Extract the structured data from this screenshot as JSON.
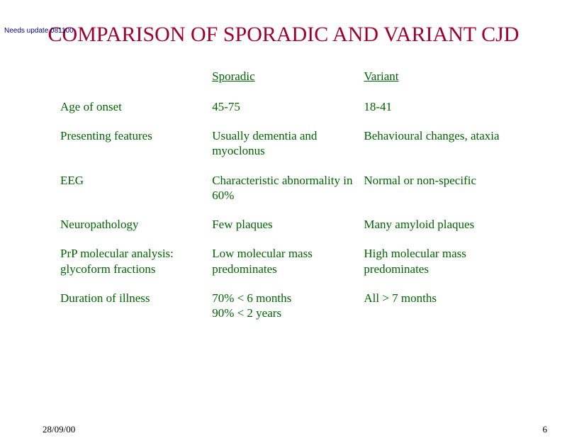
{
  "update_note": "Needs update 081100",
  "title": "COMPARISON OF SPORADIC AND VARIANT CJD",
  "table": {
    "type": "table",
    "columns": [
      "",
      "Sporadic",
      "Variant"
    ],
    "rows": [
      [
        "Age of onset",
        "45-75",
        "18-41"
      ],
      [
        "Presenting features",
        "Usually dementia and myoclonus",
        "Behavioural changes, ataxia"
      ],
      [
        "EEG",
        "Characteristic abnormality in 60%",
        "Normal or non-specific"
      ],
      [
        "Neuropathology",
        "Few plaques",
        "Many amyloid plaques"
      ],
      [
        "PrP molecular analysis: glycoform fractions",
        "Low molecular mass predominates",
        "High molecular mass predominates"
      ],
      [
        "Duration of illness",
        "70% < 6 months\n90% < 2 years",
        "All > 7 months"
      ]
    ],
    "column_widths_pct": [
      34,
      34,
      32
    ],
    "text_color": "#006400",
    "title_color": "#a00030",
    "background_color": "#ffffff",
    "fontsize_body": 17,
    "fontsize_title": 30
  },
  "footer": {
    "date": "28/09/00",
    "page": "6"
  }
}
